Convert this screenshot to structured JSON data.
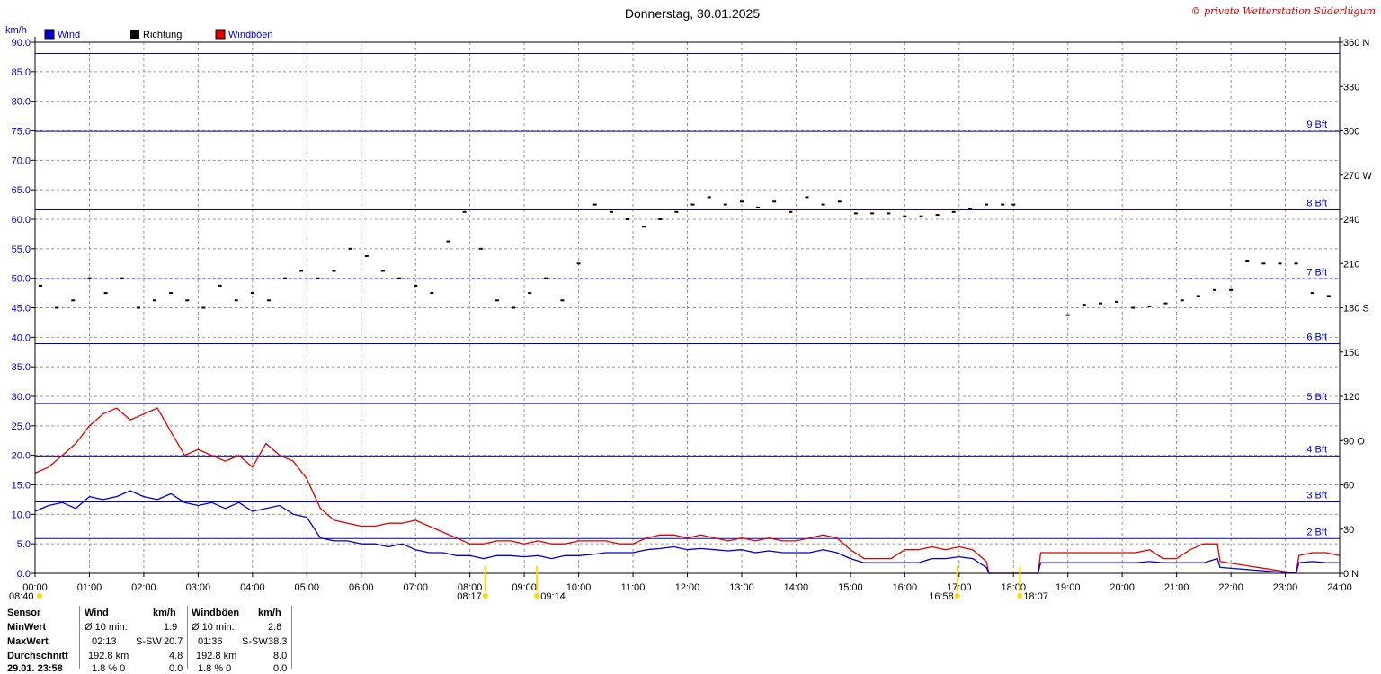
{
  "header": {
    "title": "Donnerstag, 30.01.2025",
    "copyright": "© private Wetterstation Süderlügum"
  },
  "colors": {
    "wind": "#0000cc",
    "gusts": "#dd0000",
    "direction": "#000000",
    "axis": "#0000cc"
  },
  "chart_data": {
    "type": "line",
    "title": "Donnerstag, 30.01.2025",
    "y_unit_label": "km/h",
    "ylim": [
      0,
      90
    ],
    "y2lim": [
      0,
      360
    ],
    "xlim_hours": [
      0,
      24
    ],
    "grid": true,
    "legend": [
      {
        "name": "Wind",
        "color": "#0000cc"
      },
      {
        "name": "Richtung",
        "color": "#000000"
      },
      {
        "name": "Windböen",
        "color": "#dd0000"
      }
    ],
    "y_ticks": [
      "0.0",
      "5.0",
      "10.0",
      "15.0",
      "20.0",
      "25.0",
      "30.0",
      "35.0",
      "40.0",
      "45.0",
      "50.0",
      "55.0",
      "60.0",
      "65.0",
      "70.0",
      "75.0",
      "80.0",
      "85.0",
      "90.0"
    ],
    "y2_ticks": [
      {
        "value": 0,
        "label": "0 N"
      },
      {
        "value": 30,
        "label": "30"
      },
      {
        "value": 60,
        "label": "60"
      },
      {
        "value": 90,
        "label": "90 O"
      },
      {
        "value": 120,
        "label": "120"
      },
      {
        "value": 150,
        "label": "150"
      },
      {
        "value": 180,
        "label": "180 S"
      },
      {
        "value": 210,
        "label": "210"
      },
      {
        "value": 240,
        "label": "240"
      },
      {
        "value": 270,
        "label": "270 W"
      },
      {
        "value": 300,
        "label": "300"
      },
      {
        "value": 330,
        "label": "330"
      },
      {
        "value": 360,
        "label": "360 N"
      }
    ],
    "x_ticks": [
      "00:00",
      "01:00",
      "02:00",
      "03:00",
      "04:00",
      "05:00",
      "06:00",
      "07:00",
      "08:00",
      "09:00",
      "10:00",
      "11:00",
      "12:00",
      "13:00",
      "14:00",
      "15:00",
      "16:00",
      "17:00",
      "18:00",
      "19:00",
      "20:00",
      "21:00",
      "22:00",
      "23:00",
      "24:00"
    ],
    "beaufort_lines": [
      {
        "value": 5.9,
        "label": "2 Bft"
      },
      {
        "value": 12.1,
        "label": "3 Bft"
      },
      {
        "value": 19.9,
        "label": "4 Bft"
      },
      {
        "value": 28.8,
        "label": "5 Bft"
      },
      {
        "value": 38.9,
        "label": "6 Bft"
      },
      {
        "value": 49.9,
        "label": "7 Bft"
      },
      {
        "value": 61.6,
        "label": "8 Bft"
      },
      {
        "value": 74.9,
        "label": "9 Bft"
      },
      {
        "value": 88.1,
        "label": ""
      }
    ],
    "sun_events": [
      {
        "hour": 8.283,
        "label": "08:17"
      },
      {
        "hour": 9.233,
        "label": "09:14"
      },
      {
        "hour": 16.967,
        "label": "16:58"
      },
      {
        "hour": 18.117,
        "label": "18:07"
      }
    ],
    "left_marker_label": "08:40",
    "series": [
      {
        "name": "Wind",
        "color": "#0000cc",
        "x": [
          0,
          0.25,
          0.5,
          0.75,
          1,
          1.25,
          1.5,
          1.75,
          2,
          2.25,
          2.5,
          2.75,
          3,
          3.25,
          3.5,
          3.75,
          4,
          4.25,
          4.5,
          4.75,
          5,
          5.25,
          5.5,
          5.75,
          6,
          6.25,
          6.5,
          6.75,
          7,
          7.25,
          7.5,
          7.75,
          8,
          8.25,
          8.5,
          8.75,
          9,
          9.25,
          9.5,
          9.75,
          10,
          10.25,
          10.5,
          10.75,
          11,
          11.25,
          11.5,
          11.75,
          12,
          12.25,
          12.5,
          12.75,
          13,
          13.25,
          13.5,
          13.75,
          14,
          14.25,
          14.5,
          14.75,
          15,
          15.25,
          15.5,
          15.75,
          16,
          16.25,
          16.5,
          16.75,
          17,
          17.25,
          17.5,
          17.55,
          18.45,
          18.5,
          18.75,
          19,
          19.25,
          19.5,
          19.75,
          20,
          20.25,
          20.5,
          20.75,
          21,
          21.25,
          21.5,
          21.75,
          21.8,
          23.2,
          23.25,
          23.5,
          23.75,
          24
        ],
        "y": [
          10.5,
          11.5,
          12,
          11,
          13,
          12.5,
          13,
          14,
          13,
          12.5,
          13.5,
          12,
          11.5,
          12,
          11,
          12,
          10.5,
          11,
          11.5,
          10,
          9.5,
          6,
          5.5,
          5.5,
          5,
          5,
          4.5,
          5,
          4,
          3.5,
          3.5,
          3,
          3,
          2.5,
          3,
          3,
          2.8,
          3,
          2.5,
          3,
          3,
          3.2,
          3.5,
          3.5,
          3.5,
          4,
          4.2,
          4.5,
          4,
          4.2,
          4,
          3.8,
          4,
          3.5,
          3.8,
          3.5,
          3.5,
          3.5,
          4,
          3.5,
          2.5,
          1.8,
          1.8,
          1.8,
          1.8,
          1.8,
          2.5,
          2.5,
          2.8,
          2.5,
          1,
          0,
          0,
          1.8,
          1.8,
          1.8,
          1.8,
          1.8,
          1.8,
          1.8,
          1.8,
          2,
          1.8,
          1.8,
          1.8,
          1.8,
          2.5,
          1,
          0,
          1.8,
          2,
          1.8,
          1.8
        ]
      },
      {
        "name": "Windböen",
        "color": "#dd0000",
        "x": [
          0,
          0.25,
          0.5,
          0.75,
          1,
          1.25,
          1.5,
          1.75,
          2,
          2.25,
          2.5,
          2.75,
          3,
          3.25,
          3.5,
          3.75,
          4,
          4.25,
          4.5,
          4.75,
          5,
          5.25,
          5.5,
          5.75,
          6,
          6.25,
          6.5,
          6.75,
          7,
          7.25,
          7.5,
          7.75,
          8,
          8.25,
          8.5,
          8.75,
          9,
          9.25,
          9.5,
          9.75,
          10,
          10.25,
          10.5,
          10.75,
          11,
          11.25,
          11.5,
          11.75,
          12,
          12.25,
          12.5,
          12.75,
          13,
          13.25,
          13.5,
          13.75,
          14,
          14.25,
          14.5,
          14.75,
          15,
          15.25,
          15.5,
          15.75,
          16,
          16.25,
          16.5,
          16.75,
          17,
          17.25,
          17.5,
          17.55,
          18.45,
          18.5,
          18.75,
          19,
          19.25,
          19.5,
          19.75,
          20,
          20.25,
          20.5,
          20.75,
          21,
          21.25,
          21.5,
          21.75,
          21.8,
          23.2,
          23.25,
          23.5,
          23.75,
          24
        ],
        "y": [
          17,
          18,
          20,
          22,
          25,
          27,
          28,
          26,
          27,
          28,
          24,
          20,
          21,
          20,
          19,
          20,
          18,
          22,
          20,
          19,
          16,
          11,
          9,
          8.5,
          8,
          8,
          8.5,
          8.5,
          9,
          8,
          7,
          6,
          5,
          5,
          5.5,
          5.5,
          5,
          5.5,
          5,
          5,
          5.5,
          5.5,
          5.5,
          5,
          5,
          6,
          6.5,
          6.5,
          6,
          6.5,
          6,
          5.5,
          6,
          5.5,
          6,
          5.5,
          5.5,
          6,
          6.5,
          6,
          4,
          2.5,
          2.5,
          2.5,
          4,
          4,
          4.5,
          4,
          4.5,
          4,
          2,
          0,
          0,
          3.5,
          3.5,
          3.5,
          3.5,
          3.5,
          3.5,
          3.5,
          3.5,
          4,
          2.5,
          2.5,
          4,
          5,
          5,
          2,
          0,
          3,
          3.5,
          3.5,
          3
        ]
      },
      {
        "name": "Richtung",
        "color": "#000000",
        "axis": "y2",
        "x": [
          0.1,
          0.4,
          0.7,
          1,
          1.3,
          1.6,
          1.9,
          2.2,
          2.5,
          2.8,
          3.1,
          3.4,
          3.7,
          4,
          4.3,
          4.6,
          4.9,
          5.2,
          5.5,
          5.8,
          6.1,
          6.4,
          6.7,
          7,
          7.3,
          7.6,
          7.9,
          8.2,
          8.5,
          8.8,
          9.1,
          9.4,
          9.7,
          10,
          10.3,
          10.6,
          10.9,
          11.2,
          11.5,
          11.8,
          12.1,
          12.4,
          12.7,
          13,
          13.3,
          13.6,
          13.9,
          14.2,
          14.5,
          14.8,
          15.1,
          15.4,
          15.7,
          16,
          16.3,
          16.6,
          16.9,
          17.2,
          17.5,
          17.8,
          18,
          19,
          19.3,
          19.6,
          19.9,
          20.2,
          20.5,
          20.8,
          21.1,
          21.4,
          21.7,
          22,
          22.3,
          22.6,
          22.9,
          23.2,
          23.5,
          23.8
        ],
        "y": [
          195,
          180,
          185,
          200,
          190,
          200,
          180,
          185,
          190,
          185,
          180,
          195,
          185,
          190,
          185,
          200,
          205,
          200,
          205,
          220,
          215,
          205,
          200,
          195,
          190,
          225,
          245,
          220,
          185,
          180,
          190,
          200,
          185,
          210,
          250,
          245,
          240,
          235,
          240,
          245,
          250,
          255,
          250,
          252,
          248,
          252,
          245,
          255,
          250,
          252,
          244,
          244,
          244,
          242,
          242,
          243,
          245,
          247,
          250,
          250,
          250,
          175,
          182,
          183,
          184,
          180,
          181,
          183,
          185,
          188,
          192,
          192,
          212,
          210,
          210,
          210,
          190,
          188
        ]
      }
    ]
  },
  "legend_labels": {
    "wind": "Wind",
    "direction": "Richtung",
    "gusts": "Windböen"
  },
  "stats": {
    "header": {
      "sensor": "Sensor",
      "wind": "Wind",
      "unit1": "km/h",
      "gusts": "Windböen",
      "unit2": "km/h"
    },
    "rows": [
      {
        "label": "MinWert",
        "c1": "Ø 10 min.",
        "v1": "1.9",
        "c2": "Ø 10 min.",
        "v2": "2.8"
      },
      {
        "label": "MaxWert",
        "c1": "02:13",
        "d1": "S-SW",
        "v1": "20.7",
        "c2": "01:36",
        "d2": "S-SW",
        "v2": "38.3"
      },
      {
        "label": "Durchschnitt",
        "c1": "192.8 km",
        "v1": "4.8",
        "c2": "192.8 km",
        "v2": "8.0"
      },
      {
        "label": "29.01. 23:58",
        "c1": "1.8 % 0",
        "v1": "0.0",
        "c2": "1.8 % 0",
        "v2": "0.0"
      }
    ]
  }
}
